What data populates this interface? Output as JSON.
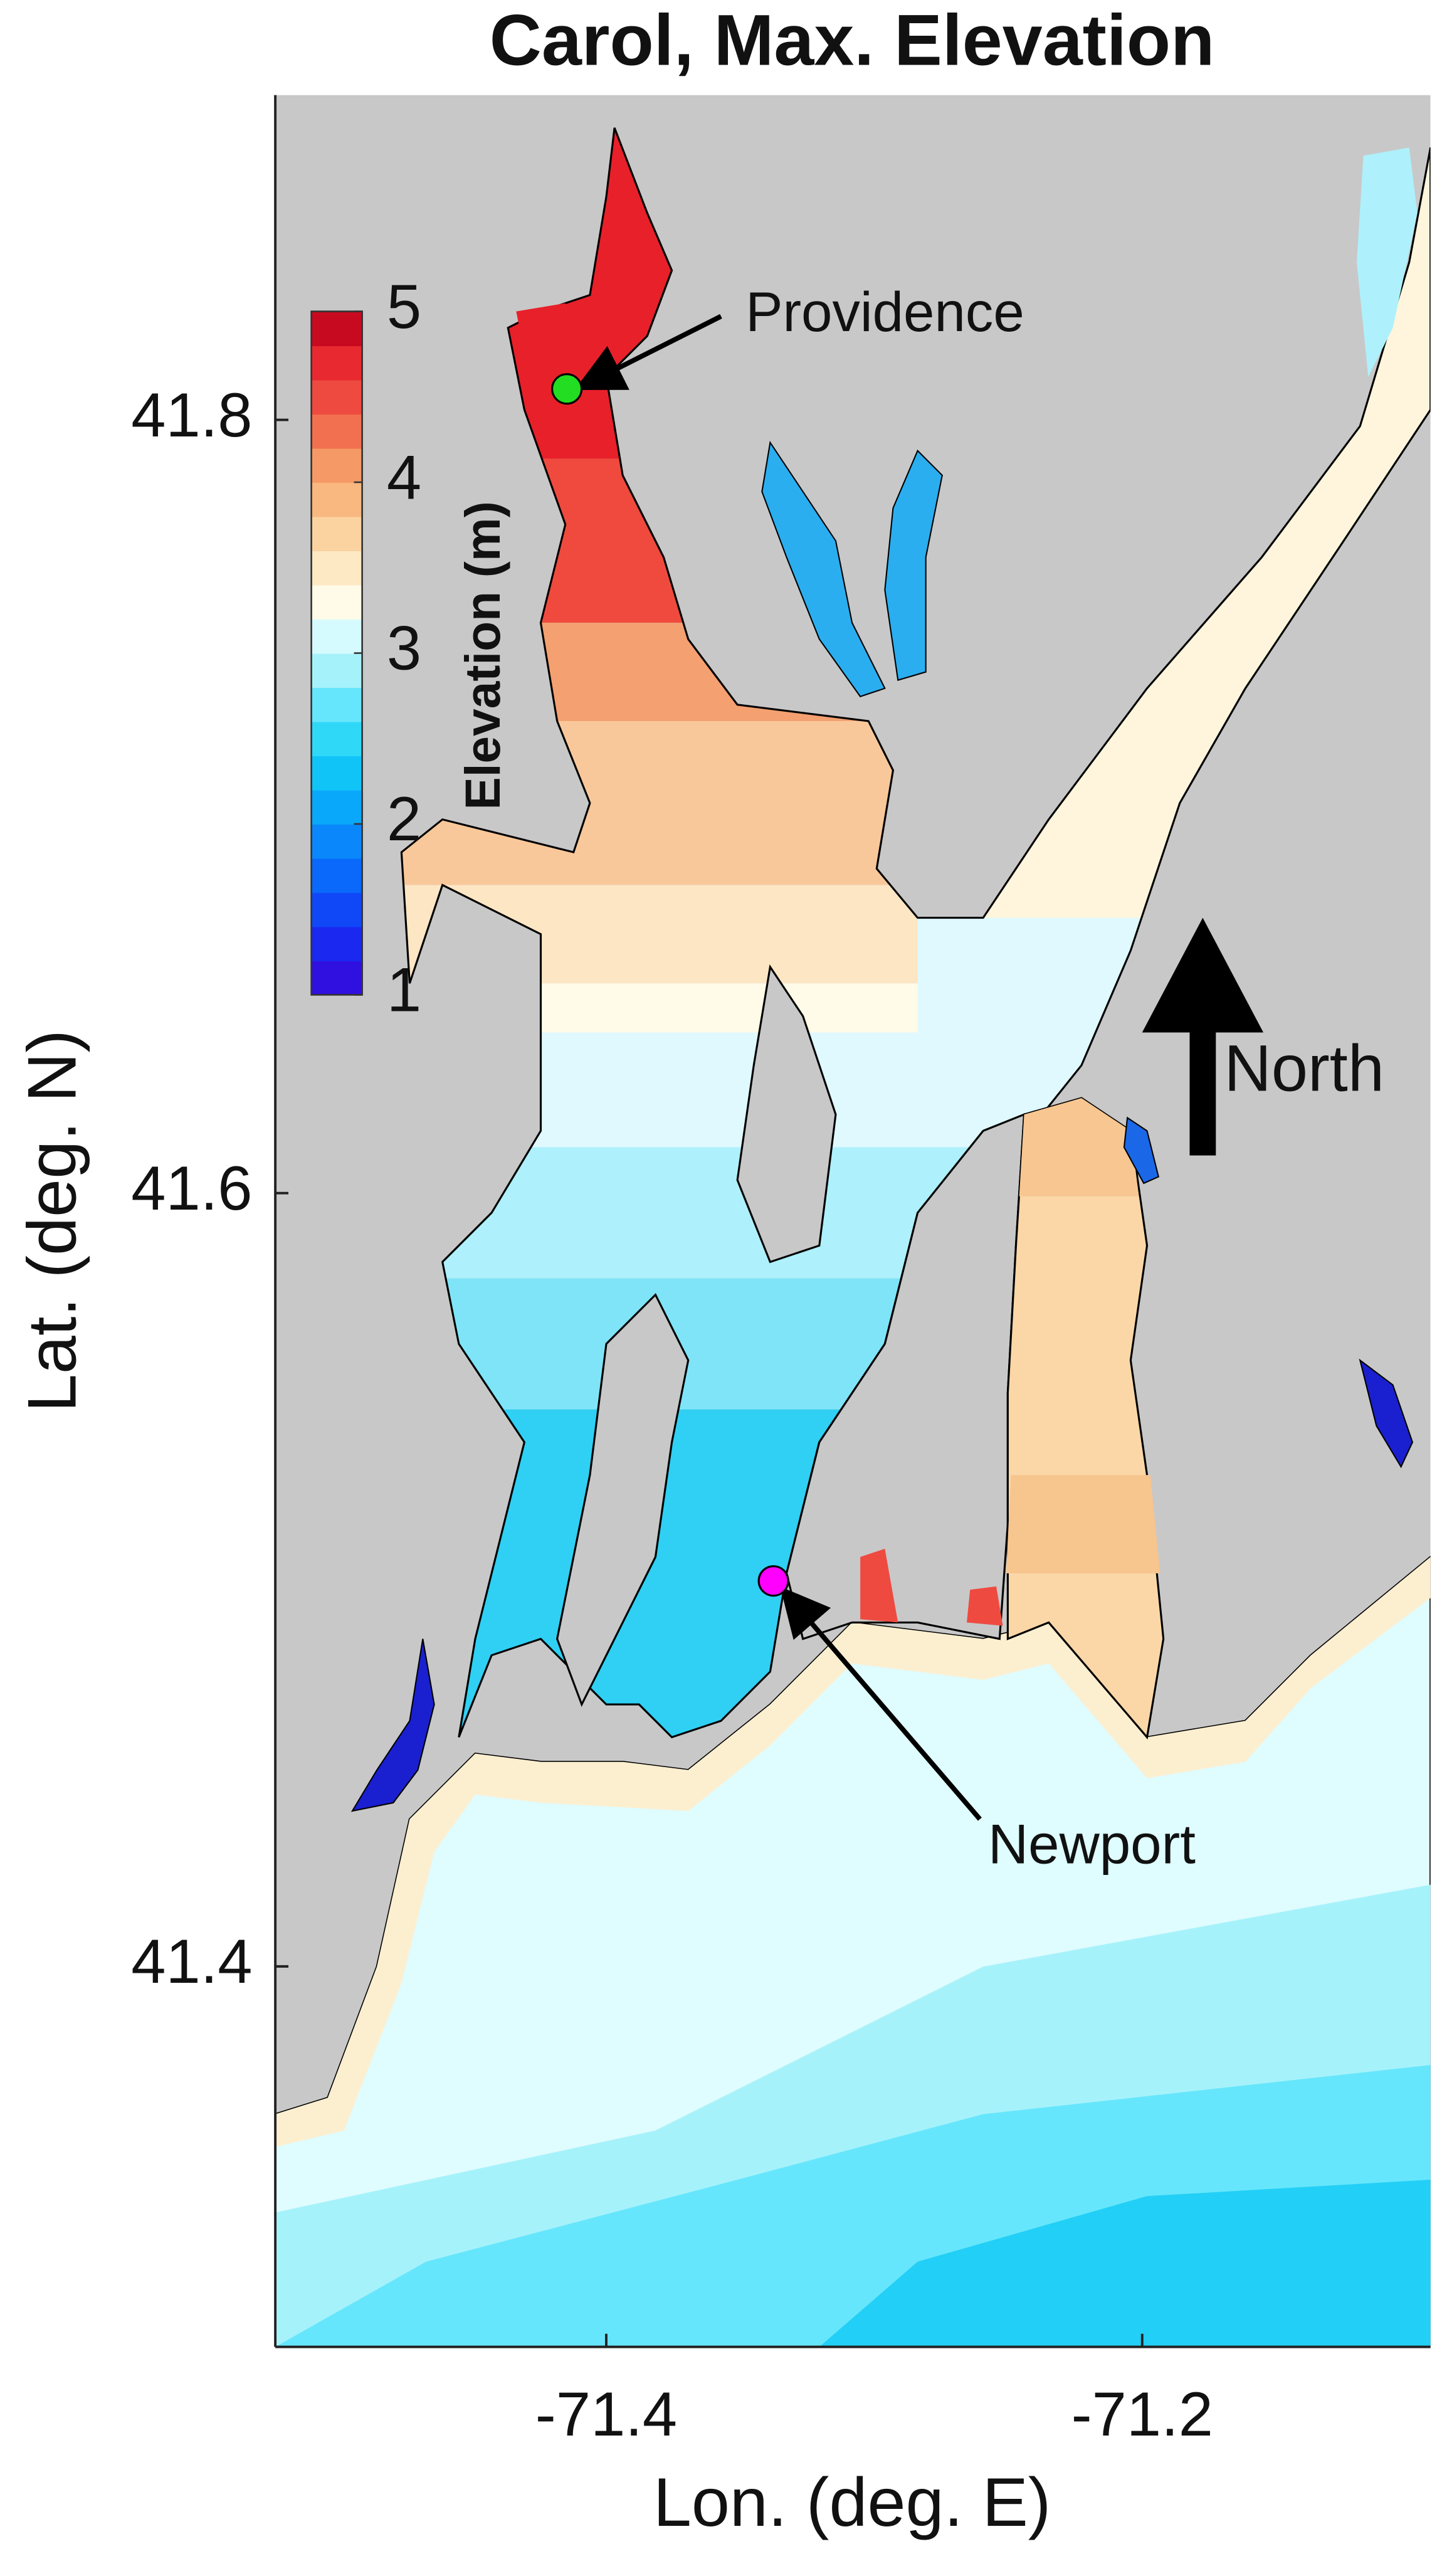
{
  "chart_data": {
    "type": "map",
    "title": "Carol, Max. Elevation",
    "xlabel": "Lon. (deg. E)",
    "ylabel": "Lat. (deg. N)",
    "xlim": [
      -71.5235,
      -71.0924
    ],
    "ylim": [
      41.3016,
      41.884
    ],
    "xticks": [
      -71.4,
      -71.2
    ],
    "yticks": [
      41.4,
      41.6,
      41.8
    ],
    "colorbar": {
      "label": "Elevation (m)",
      "lim": [
        1,
        5
      ],
      "ticks": [
        1,
        2,
        3,
        4,
        5
      ],
      "colors": [
        "#3010e0",
        "#1a28f0",
        "#1048f8",
        "#0a68fa",
        "#0a88fb",
        "#0aa8fa",
        "#10c4f8",
        "#30d8f8",
        "#66e6fc",
        "#a6f2fb",
        "#d6fbfe",
        "#fffbe8",
        "#fde9c4",
        "#fbd3a0",
        "#f8b880",
        "#f59a66",
        "#f27050",
        "#ee4a40",
        "#e82a30",
        "#c80a20"
      ]
    },
    "annotations": [
      {
        "text": "Providence",
        "lon": -71.4147,
        "lat": 41.808,
        "color": "#22dd22"
      },
      {
        "text": "Newport",
        "lon": -71.3376,
        "lat": 41.4997,
        "color": "#ff00ff"
      }
    ],
    "north_label": "North"
  }
}
